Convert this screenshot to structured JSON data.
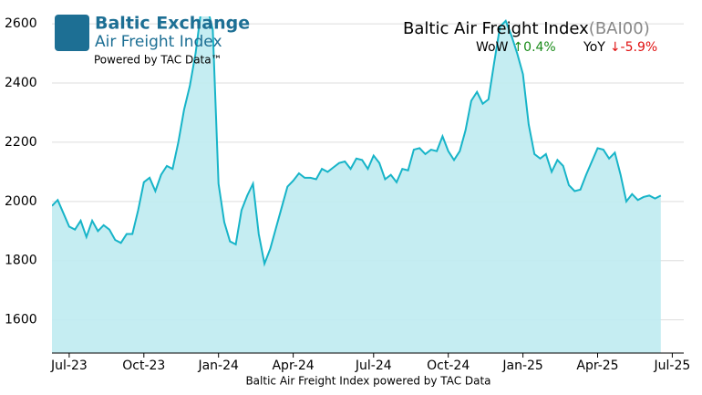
{
  "logo": {
    "name": "Baltic Exchange",
    "product": "Air Freight Index",
    "powered": "Powered by TAC Data™"
  },
  "chart_data": {
    "type": "area",
    "title": "Baltic Air Freight Index",
    "code": "(BAI00)",
    "wow_label": "WoW",
    "wow_value": "↑0.4%",
    "yoy_label": "YoY",
    "yoy_value": "↓-5.9%",
    "xlabel": "Baltic Air Freight Index powered by TAC Data",
    "color": "#17b4c8",
    "fill": "#bfebf1",
    "grid": true,
    "ylim": [
      1488,
      2625
    ],
    "yticks": [
      1600,
      1800,
      2000,
      2200,
      2400,
      2600
    ],
    "categories": [
      null,
      null,
      null,
      "Jul-23",
      null,
      null,
      null,
      null,
      null,
      null,
      null,
      null,
      null,
      null,
      null,
      null,
      "Oct-23",
      null,
      null,
      null,
      null,
      null,
      null,
      null,
      null,
      null,
      null,
      null,
      null,
      "Jan-24",
      null,
      null,
      null,
      null,
      null,
      null,
      null,
      null,
      null,
      null,
      null,
      null,
      "Apr-24",
      null,
      null,
      null,
      null,
      null,
      null,
      null,
      null,
      null,
      null,
      null,
      null,
      null,
      "Jul-24",
      null,
      null,
      null,
      null,
      null,
      null,
      null,
      null,
      null,
      null,
      null,
      null,
      "Oct-24",
      null,
      null,
      null,
      null,
      null,
      null,
      null,
      null,
      null,
      null,
      null,
      null,
      "Jan-25",
      null,
      null,
      null,
      null,
      null,
      null,
      null,
      null,
      null,
      null,
      null,
      null,
      "Apr-25",
      null,
      null,
      null,
      null,
      null,
      null,
      null,
      null,
      null,
      null,
      null,
      null,
      "Jul-25"
    ],
    "values": [
      1985,
      2005,
      1960,
      1915,
      1905,
      1935,
      1880,
      1935,
      1900,
      1920,
      1905,
      1870,
      1860,
      1890,
      1890,
      1970,
      2065,
      2080,
      2035,
      2090,
      2120,
      2110,
      2200,
      2310,
      2390,
      2500,
      2650,
      2660,
      2580,
      2060,
      1930,
      1865,
      1855,
      1970,
      2020,
      2060,
      1890,
      1790,
      1840,
      1910,
      1980,
      2050,
      2070,
      2095,
      2080,
      2080,
      2075,
      2110,
      2100,
      2115,
      2130,
      2135,
      2110,
      2145,
      2140,
      2110,
      2155,
      2130,
      2075,
      2090,
      2065,
      2110,
      2105,
      2175,
      2180,
      2160,
      2175,
      2170,
      2220,
      2170,
      2140,
      2170,
      2240,
      2340,
      2370,
      2330,
      2345,
      2470,
      2590,
      2610,
      2560,
      2500,
      2430,
      2260,
      2160,
      2145,
      2160,
      2100,
      2140,
      2120,
      2055,
      2035,
      2040,
      2090,
      2135,
      2180,
      2175,
      2145,
      2165,
      2090,
      2000,
      2025,
      2005,
      2015,
      2020,
      2010,
      2020,
      null,
      null
    ]
  }
}
